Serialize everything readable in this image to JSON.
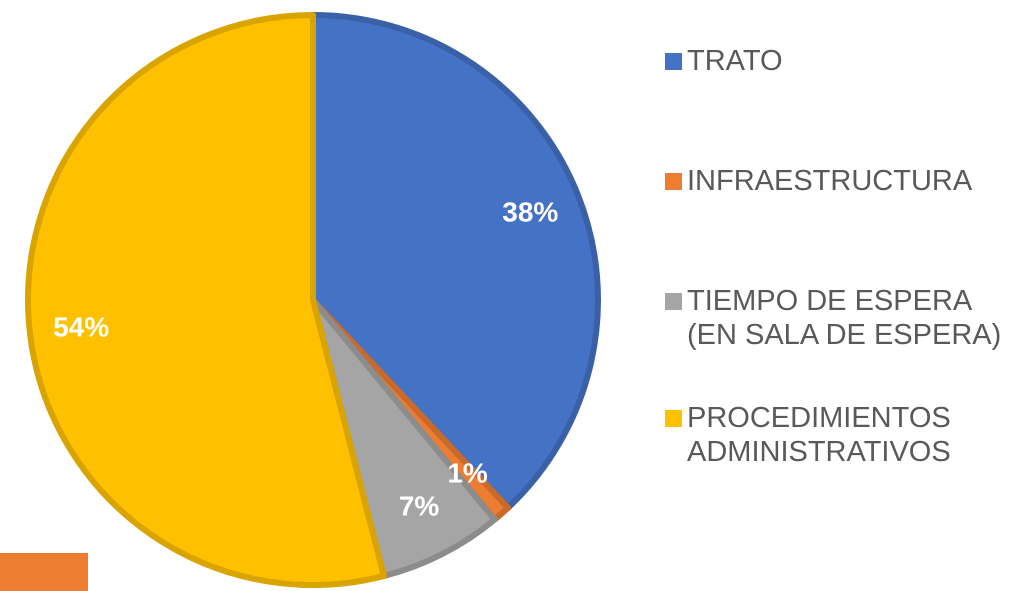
{
  "chart_data": {
    "type": "pie",
    "categories": [
      "TRATO",
      "INFRAESTRUCTURA",
      "TIEMPO DE ESPERA (EN SALA DE ESPERA)",
      "PROCEDIMIENTOS ADMINISTRATIVOS"
    ],
    "values": [
      38,
      1,
      7,
      54
    ],
    "value_labels": [
      "38%",
      "1%",
      "7%",
      "54%"
    ],
    "colors": [
      "#4472c4",
      "#ed7d31",
      "#a5a5a5",
      "#ffc000"
    ],
    "legend": "right"
  }
}
